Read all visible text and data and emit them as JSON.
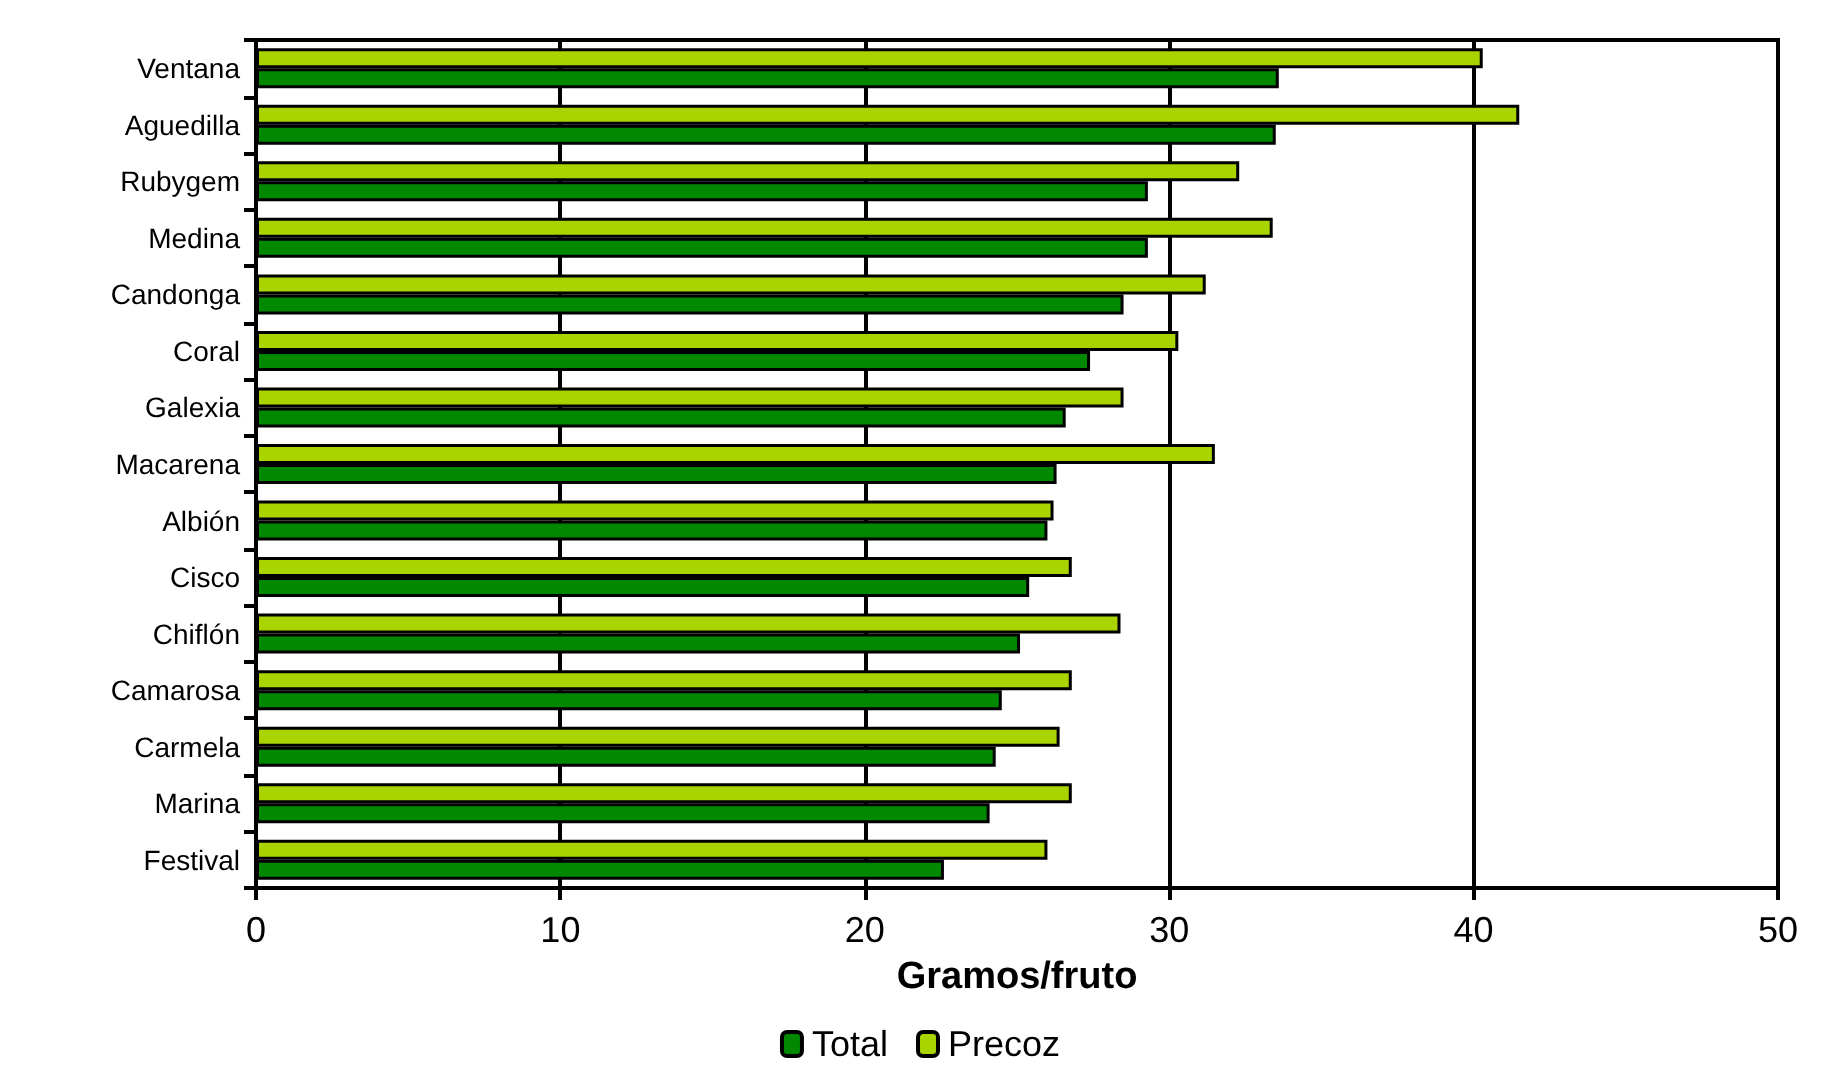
{
  "chart_data": {
    "type": "bar",
    "orientation": "horizontal",
    "xlabel": "Gramos/fruto",
    "categories": [
      "Ventana",
      "Aguedilla",
      "Rubygem",
      "Medina",
      "Candonga",
      "Coral",
      "Galexia",
      "Macarena",
      "Albión",
      "Cisco",
      "Chiflón",
      "Camarosa",
      "Carmela",
      "Marina",
      "Festival"
    ],
    "series": [
      {
        "name": "Total",
        "color": "#008800",
        "values": [
          33.6,
          33.5,
          29.3,
          29.3,
          28.5,
          27.4,
          26.6,
          26.3,
          26.0,
          25.4,
          25.1,
          24.5,
          24.3,
          24.1,
          22.6
        ]
      },
      {
        "name": "Precoz",
        "color": "#aad400",
        "values": [
          40.3,
          41.5,
          32.3,
          33.4,
          31.2,
          30.3,
          28.5,
          31.5,
          26.2,
          26.8,
          28.4,
          26.8,
          26.4,
          26.8,
          26.0
        ]
      }
    ],
    "xlim": [
      0,
      50
    ],
    "xticks": [
      0,
      10,
      20,
      30,
      40,
      50
    ],
    "grid": "x",
    "legend": "bottom"
  }
}
